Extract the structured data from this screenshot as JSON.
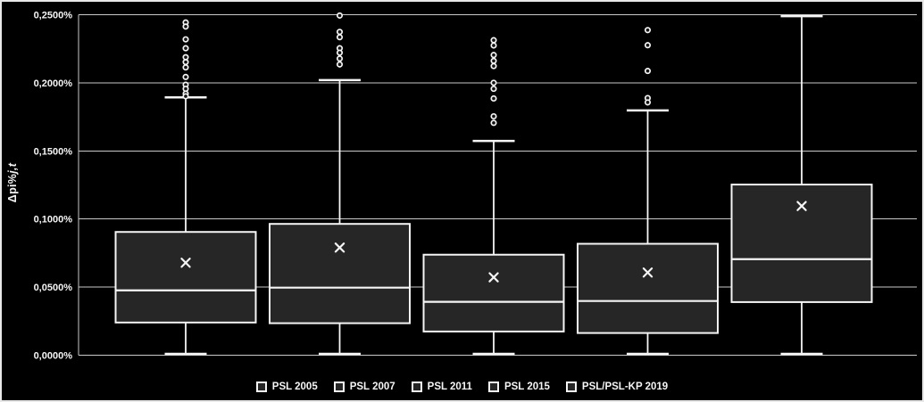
{
  "colors": {
    "background": "#000000",
    "box_fill": "#262626",
    "stroke": "#f5f5f5",
    "gridline": "#c9c9c9",
    "text": "#f5f5f5",
    "frame_border": "#e8e8e8"
  },
  "y_axis_title": {
    "prefix": "Δpi%",
    "suffix": "j,t"
  },
  "chart_data": {
    "type": "boxplot",
    "title": "",
    "xlabel": "",
    "ylabel": "Δpi%j,t",
    "grid": true,
    "legend_position": "bottom",
    "y_axis": {
      "min": 0,
      "max": 0.25,
      "tick_values": [
        0,
        0.05,
        0.1,
        0.15,
        0.2,
        0.25
      ],
      "tick_labels": [
        "0,0000%",
        "0,0500%",
        "0,1000%",
        "0,1500%",
        "0,2000%",
        "0,2500%"
      ],
      "unit": "percent"
    },
    "categories": [
      "PSL 2005",
      "PSL 2007",
      "PSL 2011",
      "PSL 2015",
      "PSL/PSL-KP 2019"
    ],
    "series": [
      {
        "name": "PSL 2005",
        "whisker_low": 0.001,
        "q1": 0.024,
        "median": 0.0476,
        "q3": 0.0905,
        "whisker_high": 0.1893,
        "mean": 0.0679,
        "outliers": [
          0.2443,
          0.2413,
          0.2319,
          0.2254,
          0.2188,
          0.2152,
          0.2113,
          0.2043,
          0.1986,
          0.1956,
          0.1921,
          0.1901
        ]
      },
      {
        "name": "PSL 2007",
        "whisker_low": 0.001,
        "q1": 0.0235,
        "median": 0.0496,
        "q3": 0.0964,
        "whisker_high": 0.202,
        "mean": 0.079,
        "outliers": [
          0.2494,
          0.2374,
          0.2335,
          0.2254,
          0.2221,
          0.2178,
          0.2135
        ]
      },
      {
        "name": "PSL 2011",
        "whisker_low": 0.001,
        "q1": 0.0174,
        "median": 0.0392,
        "q3": 0.0738,
        "whisker_high": 0.1573,
        "mean": 0.0572,
        "outliers": [
          0.2313,
          0.2274,
          0.2204,
          0.2161,
          0.2123,
          0.2,
          0.1956,
          0.1885,
          0.1754,
          0.1706
        ]
      },
      {
        "name": "PSL 2015",
        "whisker_low": 0.001,
        "q1": 0.0163,
        "median": 0.0398,
        "q3": 0.0818,
        "whisker_high": 0.1797,
        "mean": 0.0607,
        "outliers": [
          0.2387,
          0.2276,
          0.2087,
          0.1888,
          0.1856
        ]
      },
      {
        "name": "PSL/PSL-KP 2019",
        "whisker_low": 0.001,
        "q1": 0.039,
        "median": 0.0705,
        "q3": 0.1253,
        "whisker_high": 0.2489,
        "mean": 0.1095,
        "outliers": []
      }
    ]
  }
}
